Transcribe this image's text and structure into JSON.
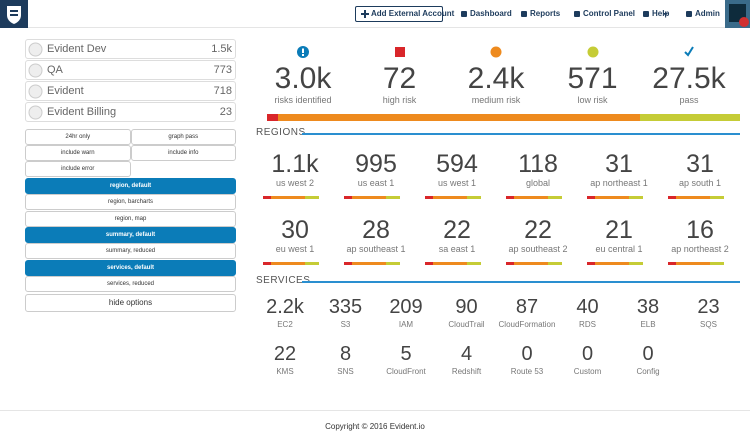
{
  "nav": {
    "add_account": "Add External Account",
    "links": [
      "Dashboard",
      "Reports",
      "Control Panel",
      "Help",
      "Admin"
    ]
  },
  "accounts": [
    {
      "name": "Evident Dev",
      "count": "1.5k"
    },
    {
      "name": "QA",
      "count": "773"
    },
    {
      "name": "Evident",
      "count": "718"
    },
    {
      "name": "Evident Billing",
      "count": "23"
    }
  ],
  "options": {
    "toggles": [
      "24hr only",
      "graph pass",
      "include warn",
      "include info",
      "include error"
    ],
    "views": [
      {
        "label": "region, default",
        "active": true
      },
      {
        "label": "region, barcharts",
        "active": false
      },
      {
        "label": "region, map",
        "active": false
      },
      {
        "label": "summary, default",
        "active": true
      },
      {
        "label": "summary, reduced",
        "active": false
      },
      {
        "label": "services, default",
        "active": true
      },
      {
        "label": "services, reduced",
        "active": false
      }
    ],
    "hide": "hide options"
  },
  "summary": [
    {
      "value": "3.0k",
      "label": "risks identified"
    },
    {
      "value": "72",
      "label": "high risk"
    },
    {
      "value": "2.4k",
      "label": "medium risk"
    },
    {
      "value": "571",
      "label": "low risk"
    },
    {
      "value": "27.5k",
      "label": "pass"
    }
  ],
  "regions": {
    "title": "REGIONS",
    "items": [
      {
        "value": "1.1k",
        "label": "us west 2"
      },
      {
        "value": "995",
        "label": "us east 1"
      },
      {
        "value": "594",
        "label": "us west 1"
      },
      {
        "value": "118",
        "label": "global"
      },
      {
        "value": "31",
        "label": "ap northeast 1"
      },
      {
        "value": "31",
        "label": "ap south 1"
      },
      {
        "value": "30",
        "label": "eu west 1"
      },
      {
        "value": "28",
        "label": "ap southeast 1"
      },
      {
        "value": "22",
        "label": "sa east 1"
      },
      {
        "value": "22",
        "label": "ap southeast 2"
      },
      {
        "value": "21",
        "label": "eu central 1"
      },
      {
        "value": "16",
        "label": "ap northeast 2"
      }
    ]
  },
  "services": {
    "title": "SERVICES",
    "items": [
      {
        "value": "2.2k",
        "label": "EC2"
      },
      {
        "value": "335",
        "label": "S3"
      },
      {
        "value": "209",
        "label": "IAM"
      },
      {
        "value": "90",
        "label": "CloudTrail"
      },
      {
        "value": "87",
        "label": "CloudFormation"
      },
      {
        "value": "40",
        "label": "RDS"
      },
      {
        "value": "38",
        "label": "ELB"
      },
      {
        "value": "23",
        "label": "SQS"
      },
      {
        "value": "22",
        "label": "KMS"
      },
      {
        "value": "8",
        "label": "SNS"
      },
      {
        "value": "5",
        "label": "CloudFront"
      },
      {
        "value": "4",
        "label": "Redshift"
      },
      {
        "value": "0",
        "label": "Route 53"
      },
      {
        "value": "0",
        "label": "Custom"
      },
      {
        "value": "0",
        "label": "Config"
      }
    ]
  },
  "footer": "Copyright © 2016 Evident.io"
}
